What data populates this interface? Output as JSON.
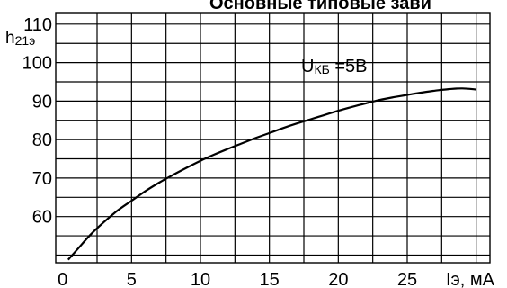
{
  "header": {
    "title": "Основные типовые зави"
  },
  "chart_data": {
    "type": "line",
    "title": "Основные типовые зави",
    "ylabel": {
      "main": "h",
      "sub": "21э"
    },
    "xlabel": "Iэ, мА",
    "annotation": {
      "main": "U",
      "sub": "КБ",
      "rest": " =5В"
    },
    "xlim": [
      -0.5,
      31
    ],
    "ylim": [
      48,
      113
    ],
    "x_ticks": [
      "0",
      "5",
      "10",
      "15",
      "20",
      "25"
    ],
    "x_tick_values": [
      0,
      5,
      10,
      15,
      20,
      25
    ],
    "y_ticks": [
      "60",
      "70",
      "80",
      "90",
      "100",
      "110"
    ],
    "y_tick_values": [
      60,
      70,
      80,
      90,
      100,
      110
    ],
    "grid": true,
    "series": [
      {
        "x": [
          0.4,
          1,
          2,
          3,
          4,
          5,
          6,
          7,
          8,
          9,
          10,
          11,
          12,
          13,
          14,
          15,
          16,
          17,
          18,
          19,
          20,
          21,
          22,
          23,
          24,
          25,
          26,
          27,
          28,
          29,
          30
        ],
        "values": [
          48.8,
          51.2,
          55.2,
          58.6,
          61.6,
          64.1,
          66.6,
          68.8,
          70.8,
          72.7,
          74.5,
          76.1,
          77.6,
          79.0,
          80.4,
          81.7,
          83.0,
          84.2,
          85.3,
          86.4,
          87.5,
          88.5,
          89.4,
          90.3,
          91.0,
          91.6,
          92.2,
          92.7,
          93.1,
          93.3,
          93.0
        ]
      }
    ]
  }
}
